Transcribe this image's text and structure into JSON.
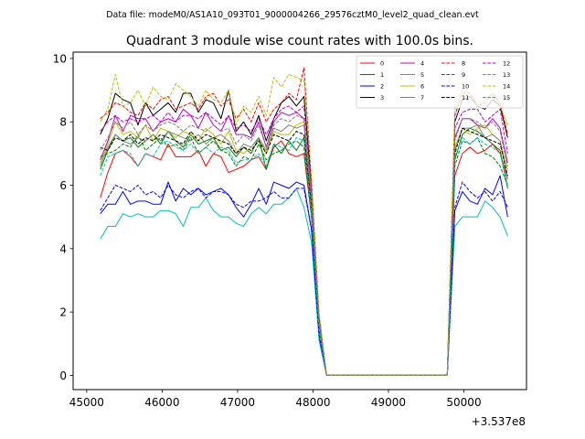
{
  "figure": {
    "suptitle": "Data file: modeM0/AS1A10_093T01_9000004266_29576cztM0_level2_quad_clean.evt"
  },
  "chart_data": {
    "type": "line",
    "title": "Quadrant 3 module wise count rates with 100.0s bins.",
    "xlabel": "",
    "ylabel": "",
    "x_offset_label": "+3.537e8",
    "xlim": [
      44820,
      50830
    ],
    "ylim": [
      -0.45,
      10.2
    ],
    "x_ticks": [
      45000,
      46000,
      47000,
      48000,
      49000,
      50000
    ],
    "x_tick_labels": [
      "45000",
      "46000",
      "47000",
      "48000",
      "49000",
      "50000"
    ],
    "y_ticks": [
      0,
      2,
      4,
      6,
      8,
      10
    ],
    "y_tick_labels": [
      "0",
      "2",
      "4",
      "6",
      "8",
      "10"
    ],
    "legend_location": "upper right",
    "legend_columns": 4,
    "x": [
      45180,
      45280,
      45380,
      45480,
      45580,
      45680,
      45780,
      45880,
      45980,
      46080,
      46180,
      46280,
      46380,
      46480,
      46580,
      46680,
      46780,
      46880,
      46980,
      47080,
      47180,
      47280,
      47380,
      47480,
      47580,
      47680,
      47780,
      47880,
      47980,
      48080,
      48180,
      48280,
      48380,
      48480,
      48580,
      48680,
      48780,
      48880,
      48980,
      49080,
      49180,
      49280,
      49380,
      49480,
      49580,
      49680,
      49780,
      49880,
      49980,
      50080,
      50180,
      50280,
      50380,
      50480,
      50580
    ],
    "series": [
      {
        "name": "0",
        "color": "#ff0000",
        "dash": "solid",
        "values": [
          5.6,
          6.4,
          7.0,
          7.1,
          6.9,
          6.6,
          7.0,
          6.9,
          6.8,
          7.3,
          6.9,
          6.9,
          6.9,
          7.1,
          6.6,
          7.0,
          6.9,
          6.4,
          6.5,
          6.6,
          6.8,
          6.9,
          6.5,
          7.2,
          7.4,
          7.0,
          6.9,
          7.0,
          5.0,
          1.5,
          0,
          0,
          0,
          0,
          0,
          0,
          0,
          0,
          0,
          0,
          0,
          0,
          0,
          0,
          0,
          0,
          0,
          6.3,
          7.0,
          7.2,
          7.0,
          7.1,
          7.3,
          7.0,
          6.2
        ]
      },
      {
        "name": "1",
        "color": "#008000",
        "dash": "solid",
        "values": [
          6.5,
          7.1,
          7.6,
          7.4,
          7.5,
          7.2,
          7.4,
          7.6,
          7.3,
          7.7,
          7.4,
          7.2,
          7.6,
          7.3,
          7.4,
          7.5,
          7.1,
          7.2,
          6.9,
          7.2,
          7.0,
          7.5,
          6.5,
          7.3,
          7.0,
          7.4,
          7.1,
          7.5,
          5.1,
          1.6,
          0,
          0,
          0,
          0,
          0,
          0,
          0,
          0,
          0,
          0,
          0,
          0,
          0,
          0,
          0,
          0,
          0,
          6.8,
          7.6,
          7.8,
          7.7,
          7.5,
          7.3,
          7.1,
          5.9
        ]
      },
      {
        "name": "2",
        "color": "#0000ff",
        "dash": "solid",
        "values": [
          5.1,
          5.4,
          5.4,
          5.8,
          5.4,
          5.5,
          5.5,
          5.4,
          5.4,
          6.1,
          5.5,
          5.9,
          5.7,
          5.9,
          5.7,
          5.8,
          5.9,
          5.7,
          5.3,
          5.0,
          5.4,
          5.9,
          5.4,
          6.1,
          6.0,
          5.9,
          6.1,
          6.0,
          4.6,
          1.2,
          0,
          0,
          0,
          0,
          0,
          0,
          0,
          0,
          0,
          0,
          0,
          0,
          0,
          0,
          0,
          0,
          0,
          5.2,
          5.8,
          5.5,
          5.4,
          5.9,
          5.7,
          6.3,
          5.0
        ]
      },
      {
        "name": "3",
        "color": "#000000",
        "dash": "solid",
        "values": [
          7.6,
          8.1,
          8.9,
          8.7,
          8.6,
          7.9,
          8.6,
          8.2,
          8.4,
          8.6,
          8.3,
          8.9,
          8.9,
          8.3,
          8.7,
          8.6,
          8.1,
          9.0,
          7.7,
          8.0,
          7.6,
          8.2,
          7.4,
          8.1,
          8.6,
          8.8,
          8.5,
          8.8,
          6.0,
          1.8,
          0,
          0,
          0,
          0,
          0,
          0,
          0,
          0,
          0,
          0,
          0,
          0,
          0,
          0,
          0,
          0,
          0,
          8.0,
          8.7,
          8.8,
          8.5,
          8.4,
          8.7,
          8.5,
          7.5
        ]
      },
      {
        "name": "4",
        "color": "#bf00bf",
        "dash": "solid",
        "values": [
          6.8,
          7.4,
          8.2,
          7.7,
          8.2,
          8.1,
          8.1,
          7.7,
          8.0,
          8.1,
          8.0,
          8.4,
          8.2,
          7.8,
          8.3,
          7.9,
          7.7,
          8.2,
          7.6,
          7.6,
          7.5,
          8.0,
          7.2,
          8.0,
          8.3,
          8.2,
          8.3,
          8.1,
          5.7,
          1.7,
          0,
          0,
          0,
          0,
          0,
          0,
          0,
          0,
          0,
          0,
          0,
          0,
          0,
          0,
          0,
          0,
          0,
          7.5,
          8.1,
          8.1,
          7.9,
          7.8,
          8.1,
          7.8,
          6.7
        ]
      },
      {
        "name": "5",
        "color": "#00bfbf",
        "dash": "solid",
        "values": [
          4.3,
          4.7,
          4.7,
          5.1,
          5.0,
          5.1,
          5.0,
          5.0,
          5.2,
          5.2,
          5.1,
          4.7,
          5.3,
          5.3,
          5.6,
          5.2,
          5.0,
          5.0,
          4.8,
          4.7,
          5.1,
          5.3,
          5.1,
          5.4,
          5.4,
          5.6,
          5.9,
          5.3,
          4.2,
          1.1,
          0,
          0,
          0,
          0,
          0,
          0,
          0,
          0,
          0,
          0,
          0,
          0,
          0,
          0,
          0,
          0,
          0,
          4.7,
          5.0,
          5.0,
          5.0,
          5.5,
          5.3,
          5.0,
          4.4
        ]
      },
      {
        "name": "6",
        "color": "#bfbf00",
        "dash": "solid",
        "values": [
          6.7,
          7.3,
          8.0,
          7.6,
          7.7,
          7.5,
          7.9,
          7.4,
          7.8,
          7.7,
          7.5,
          7.7,
          7.6,
          7.4,
          7.8,
          7.6,
          7.3,
          7.7,
          7.1,
          7.0,
          7.2,
          7.5,
          7.0,
          7.7,
          7.6,
          7.6,
          7.9,
          8.0,
          5.5,
          1.6,
          0,
          0,
          0,
          0,
          0,
          0,
          0,
          0,
          0,
          0,
          0,
          0,
          0,
          0,
          0,
          0,
          0,
          7.2,
          7.8,
          7.6,
          7.8,
          7.9,
          7.6,
          7.4,
          6.5
        ]
      },
      {
        "name": "7",
        "color": "#808080",
        "dash": "solid",
        "values": [
          6.6,
          7.2,
          7.6,
          7.4,
          7.3,
          7.5,
          7.4,
          7.6,
          7.4,
          7.7,
          7.6,
          7.5,
          7.4,
          7.6,
          7.3,
          7.5,
          7.6,
          7.4,
          7.0,
          7.3,
          7.2,
          7.5,
          7.1,
          7.8,
          7.7,
          7.9,
          7.8,
          7.9,
          5.4,
          1.6,
          0,
          0,
          0,
          0,
          0,
          0,
          0,
          0,
          0,
          0,
          0,
          0,
          0,
          0,
          0,
          0,
          0,
          7.1,
          7.8,
          7.8,
          7.9,
          7.5,
          7.6,
          7.4,
          6.2
        ]
      },
      {
        "name": "8",
        "color": "#ff0000",
        "dash": "dashed",
        "values": [
          8.1,
          8.3,
          8.6,
          8.5,
          8.3,
          8.2,
          8.6,
          8.4,
          8.7,
          8.8,
          8.4,
          8.5,
          8.6,
          8.4,
          8.8,
          8.9,
          8.5,
          8.7,
          8.1,
          8.4,
          8.0,
          8.6,
          8.0,
          8.4,
          8.6,
          8.9,
          8.7,
          9.7,
          6.1,
          1.9,
          0,
          0,
          0,
          0,
          0,
          0,
          0,
          0,
          0,
          0,
          0,
          0,
          0,
          0,
          0,
          0,
          0,
          8.2,
          8.9,
          8.9,
          8.5,
          8.6,
          8.9,
          8.6,
          7.6
        ]
      },
      {
        "name": "9",
        "color": "#008000",
        "dash": "dashed",
        "values": [
          6.9,
          7.0,
          7.1,
          7.3,
          7.2,
          7.6,
          7.1,
          7.3,
          7.5,
          7.2,
          7.3,
          7.1,
          7.5,
          7.0,
          7.2,
          7.4,
          7.1,
          7.0,
          6.6,
          6.9,
          6.8,
          7.3,
          6.8,
          7.0,
          7.1,
          7.3,
          7.4,
          7.2,
          5.0,
          1.5,
          0,
          0,
          0,
          0,
          0,
          0,
          0,
          0,
          0,
          0,
          0,
          0,
          0,
          0,
          0,
          0,
          0,
          6.6,
          7.4,
          7.3,
          7.5,
          7.0,
          6.9,
          6.6,
          6.0
        ]
      },
      {
        "name": "10",
        "color": "#0000ff",
        "dash": "dashed",
        "values": [
          5.2,
          5.6,
          6.0,
          5.9,
          5.8,
          6.0,
          5.7,
          5.8,
          5.6,
          6.0,
          5.7,
          5.6,
          5.8,
          5.9,
          5.6,
          5.8,
          5.8,
          5.7,
          5.4,
          5.3,
          5.5,
          5.5,
          5.6,
          5.8,
          5.6,
          5.6,
          5.9,
          5.9,
          4.6,
          1.3,
          0,
          0,
          0,
          0,
          0,
          0,
          0,
          0,
          0,
          0,
          0,
          0,
          0,
          0,
          0,
          0,
          0,
          5.3,
          6.1,
          5.8,
          5.6,
          5.8,
          5.5,
          5.8,
          5.3
        ]
      },
      {
        "name": "11",
        "color": "#000000",
        "dash": "dashed",
        "values": [
          7.2,
          7.1,
          7.5,
          7.4,
          7.6,
          7.3,
          7.5,
          7.4,
          7.6,
          7.5,
          7.4,
          7.3,
          7.7,
          7.4,
          7.6,
          7.5,
          7.4,
          7.3,
          7.0,
          7.2,
          7.1,
          7.4,
          7.0,
          7.6,
          7.5,
          7.4,
          7.7,
          7.6,
          5.3,
          1.6,
          0,
          0,
          0,
          0,
          0,
          0,
          0,
          0,
          0,
          0,
          0,
          0,
          0,
          0,
          0,
          0,
          0,
          7.0,
          7.8,
          7.7,
          7.6,
          7.5,
          7.4,
          7.3,
          6.3
        ]
      },
      {
        "name": "12",
        "color": "#bf00bf",
        "dash": "dashed",
        "values": [
          7.7,
          8.0,
          8.2,
          8.0,
          8.1,
          8.0,
          8.1,
          8.2,
          8.0,
          8.3,
          8.0,
          8.2,
          8.2,
          8.1,
          8.3,
          8.1,
          7.9,
          8.2,
          7.8,
          7.9,
          7.7,
          8.1,
          7.6,
          8.1,
          8.4,
          8.5,
          8.3,
          8.5,
          5.8,
          1.8,
          0,
          0,
          0,
          0,
          0,
          0,
          0,
          0,
          0,
          0,
          0,
          0,
          0,
          0,
          0,
          0,
          0,
          7.8,
          8.3,
          8.4,
          8.4,
          8.0,
          8.2,
          8.4,
          7.0
        ]
      },
      {
        "name": "13",
        "color": "#00bfbf",
        "dash": "dashed",
        "values": [
          6.3,
          6.9,
          7.0,
          7.1,
          7.0,
          6.6,
          7.0,
          6.9,
          7.3,
          7.4,
          7.2,
          7.1,
          7.3,
          7.0,
          7.2,
          7.0,
          7.2,
          7.1,
          6.7,
          6.8,
          6.8,
          7.0,
          6.6,
          7.3,
          7.2,
          7.1,
          7.5,
          7.4,
          5.1,
          1.5,
          0,
          0,
          0,
          0,
          0,
          0,
          0,
          0,
          0,
          0,
          0,
          0,
          0,
          0,
          0,
          0,
          0,
          6.9,
          7.5,
          7.3,
          7.5,
          7.3,
          7.2,
          7.0,
          6.0
        ]
      },
      {
        "name": "14",
        "color": "#bfbf00",
        "dash": "dashed",
        "values": [
          8.0,
          8.4,
          9.5,
          8.5,
          8.6,
          9.0,
          8.5,
          9.1,
          8.8,
          8.7,
          9.2,
          9.0,
          8.8,
          8.5,
          9.0,
          8.7,
          8.6,
          9.0,
          7.9,
          8.5,
          8.3,
          8.8,
          8.2,
          9.4,
          9.1,
          9.5,
          9.4,
          9.3,
          6.2,
          2.0,
          0,
          0,
          0,
          0,
          0,
          0,
          0,
          0,
          0,
          0,
          0,
          0,
          0,
          0,
          0,
          0,
          0,
          8.4,
          9.0,
          8.9,
          8.6,
          8.7,
          8.9,
          8.5,
          7.9
        ]
      },
      {
        "name": "15",
        "color": "#808080",
        "dash": "dashed",
        "values": [
          7.1,
          7.5,
          8.0,
          7.8,
          8.0,
          7.6,
          7.9,
          7.7,
          7.9,
          8.0,
          7.9,
          7.7,
          7.9,
          7.8,
          7.7,
          7.9,
          7.7,
          7.8,
          7.3,
          7.6,
          7.4,
          7.9,
          7.2,
          7.9,
          8.1,
          8.0,
          8.2,
          8.1,
          5.6,
          1.7,
          0,
          0,
          0,
          0,
          0,
          0,
          0,
          0,
          0,
          0,
          0,
          0,
          0,
          0,
          0,
          0,
          0,
          7.4,
          8.1,
          8.1,
          8.0,
          7.8,
          8.0,
          7.7,
          6.6
        ]
      }
    ]
  }
}
